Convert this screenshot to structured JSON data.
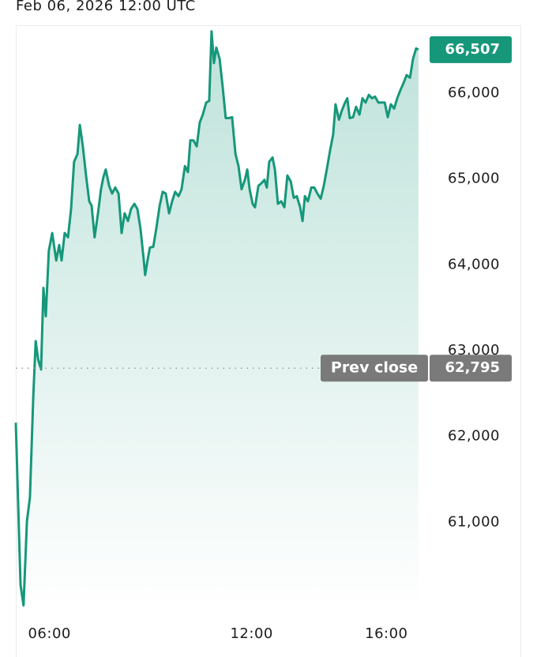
{
  "chart_data": {
    "type": "line",
    "title": "Feb 06, 2026 12:00 UTC",
    "color": "#16977a",
    "x": [
      5.0,
      5.14,
      5.23,
      5.33,
      5.42,
      5.52,
      5.59,
      5.66,
      5.75,
      5.82,
      5.89,
      5.98,
      6.08,
      6.2,
      6.29,
      6.36,
      6.45,
      6.55,
      6.64,
      6.73,
      6.83,
      6.9,
      6.99,
      7.09,
      7.18,
      7.25,
      7.34,
      7.44,
      7.53,
      7.6,
      7.67,
      7.77,
      7.86,
      7.95,
      8.05,
      8.14,
      8.23,
      8.33,
      8.42,
      8.52,
      8.61,
      8.7,
      8.8,
      8.84,
      8.91,
      8.98,
      9.08,
      9.17,
      9.27,
      9.36,
      9.45,
      9.55,
      9.64,
      9.73,
      9.83,
      9.92,
      10.02,
      10.11,
      10.18,
      10.27,
      10.37,
      10.46,
      10.55,
      10.65,
      10.74,
      10.81,
      10.88,
      10.95,
      11.05,
      11.14,
      11.23,
      11.33,
      11.42,
      11.52,
      11.61,
      11.7,
      11.8,
      11.87,
      11.94,
      12.03,
      12.1,
      12.2,
      12.29,
      12.38,
      12.45,
      12.52,
      12.62,
      12.69,
      12.78,
      12.88,
      12.97,
      13.06,
      13.16,
      13.25,
      13.34,
      13.44,
      13.51,
      13.58,
      13.67,
      13.77,
      13.86,
      13.95,
      14.05,
      14.14,
      14.23,
      14.33,
      14.42,
      14.49,
      14.59,
      14.68,
      14.77,
      14.84,
      14.91,
      15.01,
      15.1,
      15.2,
      15.29,
      15.38,
      15.48,
      15.57,
      15.66,
      15.76,
      15.85,
      15.95,
      16.04,
      16.13,
      16.23,
      16.32,
      16.41,
      16.51,
      16.6,
      16.7,
      16.79,
      16.88,
      16.95
    ],
    "values": [
      62160,
      60270,
      60030,
      61010,
      61290,
      62480,
      63110,
      62900,
      62780,
      63730,
      63400,
      64160,
      64370,
      64050,
      64230,
      64050,
      64370,
      64320,
      64650,
      65200,
      65290,
      65630,
      65380,
      65020,
      64740,
      64690,
      64320,
      64600,
      64880,
      65020,
      65110,
      64920,
      64830,
      64900,
      64830,
      64370,
      64600,
      64510,
      64650,
      64710,
      64650,
      64420,
      64050,
      63880,
      64050,
      64200,
      64210,
      64420,
      64690,
      64850,
      64830,
      64600,
      64740,
      64850,
      64800,
      64880,
      65150,
      65080,
      65450,
      65450,
      65380,
      65660,
      65750,
      65890,
      65910,
      66720,
      66350,
      66530,
      66400,
      66070,
      65710,
      65710,
      65720,
      65290,
      65150,
      64880,
      64990,
      65110,
      64880,
      64710,
      64670,
      64920,
      64950,
      64990,
      64900,
      65200,
      65250,
      65110,
      64710,
      64740,
      64670,
      65040,
      64970,
      64780,
      64800,
      64670,
      64510,
      64800,
      64740,
      64900,
      64900,
      64830,
      64770,
      64920,
      65110,
      65340,
      65520,
      65870,
      65690,
      65800,
      65890,
      65940,
      65710,
      65720,
      65840,
      65750,
      65940,
      65890,
      65980,
      65940,
      65960,
      65890,
      65890,
      65890,
      65720,
      65870,
      65820,
      65940,
      66030,
      66120,
      66210,
      66180,
      66400,
      66520,
      66507
    ],
    "xlim": [
      5,
      20
    ],
    "xticks": [
      {
        "value": 6,
        "label": "06:00"
      },
      {
        "value": 12,
        "label": "12:00"
      },
      {
        "value": 16,
        "label": "16:00"
      }
    ],
    "ylim": [
      60000,
      66800
    ],
    "yticks": [
      {
        "value": 61000,
        "label": "61,000"
      },
      {
        "value": 62000,
        "label": "62,000"
      },
      {
        "value": 63000,
        "label": "63,000"
      },
      {
        "value": 64000,
        "label": "64,000"
      },
      {
        "value": 65000,
        "label": "65,000"
      },
      {
        "value": 66000,
        "label": "66,000"
      }
    ],
    "last_price": {
      "value": 66507,
      "label": "66,507"
    },
    "prev_close": {
      "name": "Prev close",
      "value": 62795,
      "label": "62,795"
    }
  }
}
